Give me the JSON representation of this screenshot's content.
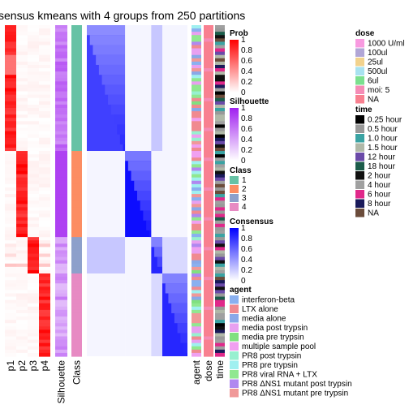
{
  "chart_data": {
    "type": "heatmap",
    "title": "sensus kmeans with 4 groups from 250 partitions",
    "n_rows": 100,
    "groups": [
      {
        "class": "1",
        "rows": 38
      },
      {
        "class": "2",
        "rows": 26
      },
      {
        "class": "3",
        "rows": 11
      },
      {
        "class": "4",
        "rows": 25
      }
    ],
    "prob_columns": [
      "p1",
      "p2",
      "p3",
      "p4"
    ],
    "extra_columns": [
      "Silhouette",
      "Class"
    ],
    "annotation_columns": [
      "agent",
      "dose",
      "time"
    ],
    "legends": {
      "prob": {
        "title": "Prob",
        "ticks": [
          "1",
          "0.8",
          "0.6",
          "0.4",
          "0.2",
          "0"
        ],
        "low": "#ffffff",
        "high": "#ff0000"
      },
      "silhouette": {
        "title": "Silhouette",
        "ticks": [
          "1",
          "0.8",
          "0.6",
          "0.4",
          "0.2",
          "0"
        ],
        "low": "#ffffff",
        "high": "#a020f0"
      },
      "class": {
        "title": "Class",
        "labels": [
          "1",
          "2",
          "3",
          "4"
        ],
        "colors": [
          "#66c2a5",
          "#fc8d62",
          "#8da0cb",
          "#e78ac3"
        ]
      },
      "consensus": {
        "title": "Consensus",
        "ticks": [
          "1",
          "0.8",
          "0.6",
          "0.4",
          "0.2",
          "0"
        ],
        "low": "#ffffff",
        "high": "#0000ff"
      },
      "dose": {
        "title": "dose",
        "labels": [
          "1000 U/ml",
          "100ul",
          "25ul",
          "500ul",
          "6ul",
          "moi: 5",
          "NA"
        ],
        "colors": [
          "#f89ae0",
          "#b1a6d6",
          "#f2d28d",
          "#a8e2f0",
          "#7be08f",
          "#f58cb6",
          "#f88090"
        ]
      },
      "time": {
        "title": "time",
        "labels": [
          "0.25 hour",
          "0.5 hour",
          "1.0 hour",
          "1.5 hour",
          "12 hour",
          "18 hour",
          "2 hour",
          "4 hour",
          "6 hour",
          "8 hour",
          "NA"
        ],
        "colors": [
          "#000000",
          "#999999",
          "#3ba3a3",
          "#b0b8a8",
          "#6a4aa8",
          "#1c5c4a",
          "#111111",
          "#a0a0a0",
          "#e0288a",
          "#1a1a5a",
          "#6b4c3b"
        ]
      },
      "agent": {
        "title": "agent",
        "labels": [
          "interferon-beta",
          "LTX alone",
          "media alone",
          "media post trypsin",
          "media pre trypsin",
          "multiple sample pool",
          "PR8 post trypsin",
          "PR8 pre trypsin",
          "PR8 viral RNA + LTX",
          "PR8 ΔNS1 mutant post trypsin",
          "PR8 ΔNS1 mutant pre trypsin"
        ],
        "colors": [
          "#8ab0f0",
          "#f08a90",
          "#8aa8e8",
          "#e8a0f0",
          "#80e080",
          "#f0a0f0",
          "#98f0d0",
          "#a0f0f0",
          "#90e890",
          "#b088f0",
          "#f09898"
        ]
      }
    }
  }
}
